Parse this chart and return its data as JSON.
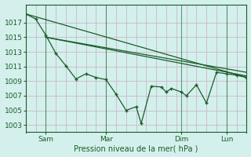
{
  "xlabel": "Pression niveau de la mer( hPa )",
  "bg_color": "#d4f0ec",
  "grid_color": "#c8d8d0",
  "grid_color_v": "#c0c8c8",
  "line_color": "#1a5c2a",
  "xlim": [
    0,
    88
  ],
  "ylim": [
    1002,
    1019.5
  ],
  "yticks": [
    1003,
    1005,
    1007,
    1009,
    1011,
    1013,
    1015,
    1017
  ],
  "xtick_positions": [
    8,
    32,
    62,
    80
  ],
  "xtick_labels": [
    "Sam",
    "Mar",
    "Dim",
    "Lun"
  ],
  "vline_positions": [
    8,
    32,
    62,
    80
  ],
  "line_detailed": [
    [
      0,
      1018.2
    ],
    [
      4,
      1017.5
    ],
    [
      8,
      1015.3
    ],
    [
      12,
      1012.8
    ],
    [
      16,
      1011.1
    ],
    [
      20,
      1009.3
    ],
    [
      24,
      1010.0
    ],
    [
      28,
      1009.5
    ],
    [
      32,
      1009.2
    ],
    [
      36,
      1007.2
    ],
    [
      40,
      1005.0
    ],
    [
      44,
      1005.5
    ],
    [
      46,
      1003.2
    ],
    [
      50,
      1008.3
    ],
    [
      54,
      1008.2
    ],
    [
      56,
      1007.5
    ],
    [
      58,
      1008.0
    ],
    [
      62,
      1007.5
    ],
    [
      64,
      1007.0
    ],
    [
      68,
      1008.5
    ],
    [
      72,
      1006.0
    ],
    [
      76,
      1010.2
    ],
    [
      80,
      1010.0
    ],
    [
      84,
      1009.8
    ],
    [
      88,
      1009.5
    ]
  ],
  "line_straight1": [
    [
      0,
      1018.2
    ],
    [
      88,
      1009.5
    ]
  ],
  "line_straight2": [
    [
      8,
      1015.0
    ],
    [
      88,
      1010.2
    ]
  ],
  "line_straight3": [
    [
      8,
      1015.0
    ],
    [
      88,
      1009.7
    ]
  ]
}
